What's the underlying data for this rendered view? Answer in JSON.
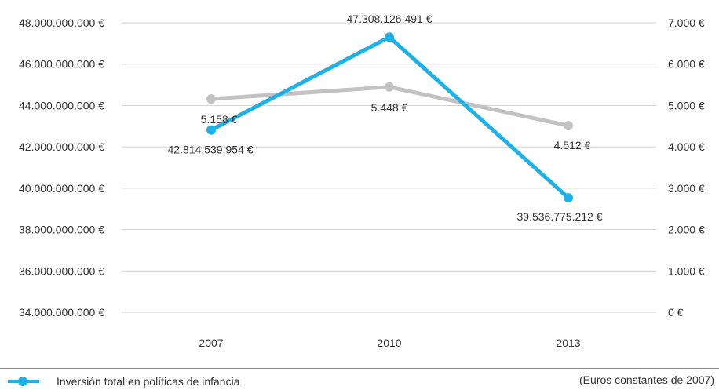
{
  "chart_data": {
    "type": "line",
    "categories": [
      "2007",
      "2010",
      "2013"
    ],
    "left_axis": {
      "ylim": [
        34000000000,
        48000000000
      ],
      "ticks": [
        34000000000,
        36000000000,
        38000000000,
        40000000000,
        42000000000,
        44000000000,
        46000000000,
        48000000000
      ],
      "tick_labels": [
        "34.000.000.000 €",
        "36.000.000.000 €",
        "38.000.000.000 €",
        "40.000.000.000 €",
        "42.000.000.000 €",
        "44.000.000.000 €",
        "46.000.000.000 €",
        "48.000.000.000 €"
      ]
    },
    "right_axis": {
      "ylim": [
        0,
        7000
      ],
      "ticks": [
        0,
        1000,
        2000,
        3000,
        4000,
        5000,
        6000,
        7000
      ],
      "tick_labels": [
        "0 €",
        "1.000 €",
        "2.000 €",
        "3.000 €",
        "4.000 €",
        "5.000 €",
        "6.000 €",
        "7.000 €"
      ]
    },
    "series": [
      {
        "name": "Inversión total en políticas de infancia",
        "axis": "left",
        "color": "#1eb1e8",
        "values": [
          42814539954,
          47308126491,
          39536775212
        ],
        "labels": [
          "42.814.539.954 €",
          "47.308.126.491 €",
          "39.536.775.212 €"
        ]
      },
      {
        "axis": "right",
        "color": "#c2c2c4",
        "values": [
          5158,
          5448,
          4512
        ],
        "labels": [
          "5.158 €",
          "5.448 €",
          "4.512 €"
        ]
      }
    ],
    "grid": true,
    "gridline_color": "#d0d0d0",
    "legend_position": "bottom-left",
    "note": "(Euros constantes de 2007)"
  }
}
